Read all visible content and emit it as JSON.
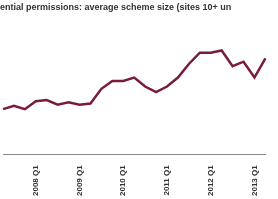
{
  "chart_data": {
    "type": "line",
    "title": "ential permissions: average scheme size (sites 10+ un",
    "categories": [
      null,
      null,
      null,
      "2008 Q1",
      null,
      null,
      null,
      "2009 Q1",
      null,
      null,
      null,
      "2010 Q1",
      null,
      null,
      null,
      "2011 Q1",
      null,
      null,
      null,
      "2012 Q1",
      null,
      null,
      null,
      "2013 Q1",
      null
    ],
    "values": [
      40,
      43,
      40,
      47,
      48,
      44,
      46,
      44,
      45,
      58,
      65,
      65,
      68,
      60,
      55,
      60,
      68,
      80,
      90,
      90,
      92,
      78,
      82,
      68,
      85
    ],
    "color": "#7a1a3c",
    "ylim": [
      0,
      120
    ],
    "yticks": [
      0,
      20,
      40,
      60,
      80,
      100,
      120
    ],
    "grid": false,
    "tick_labels": "x"
  }
}
